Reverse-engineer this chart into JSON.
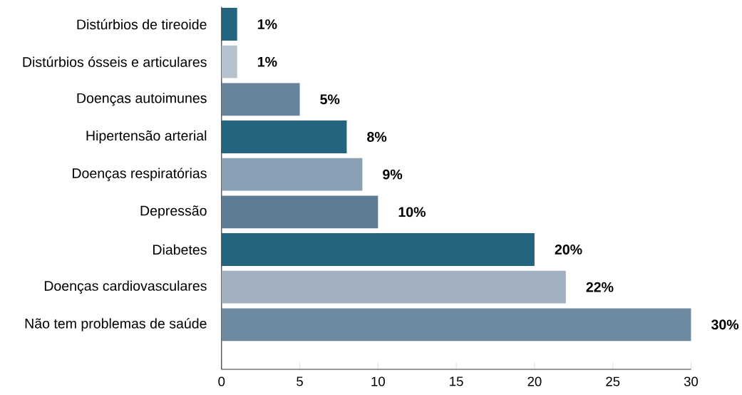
{
  "chart_data": {
    "type": "bar",
    "orientation": "horizontal",
    "categories": [
      "Distúrbios de tireoide",
      "Distúrbios ósseis e articulares",
      "Doenças autoimunes",
      "Hipertensão arterial",
      "Doenças respiratórias",
      "Depressão",
      "Diabetes",
      "Doenças cardiovasculares",
      "Não tem problemas de saúde"
    ],
    "values": [
      1,
      1,
      5,
      8,
      9,
      10,
      20,
      22,
      30
    ],
    "value_labels": [
      "1%",
      "1%",
      "5%",
      "8%",
      "9%",
      "10%",
      "20%",
      "22%",
      "30%"
    ],
    "colors": [
      "#23657f",
      "#b5c2ce",
      "#66849c",
      "#23657f",
      "#8aa1b5",
      "#5d7d96",
      "#23657f",
      "#a2b1bf",
      "#6e8aa0"
    ],
    "xlim": [
      0,
      30
    ],
    "xticks": [
      0,
      5,
      10,
      15,
      20,
      25,
      30
    ],
    "grid": false
  }
}
